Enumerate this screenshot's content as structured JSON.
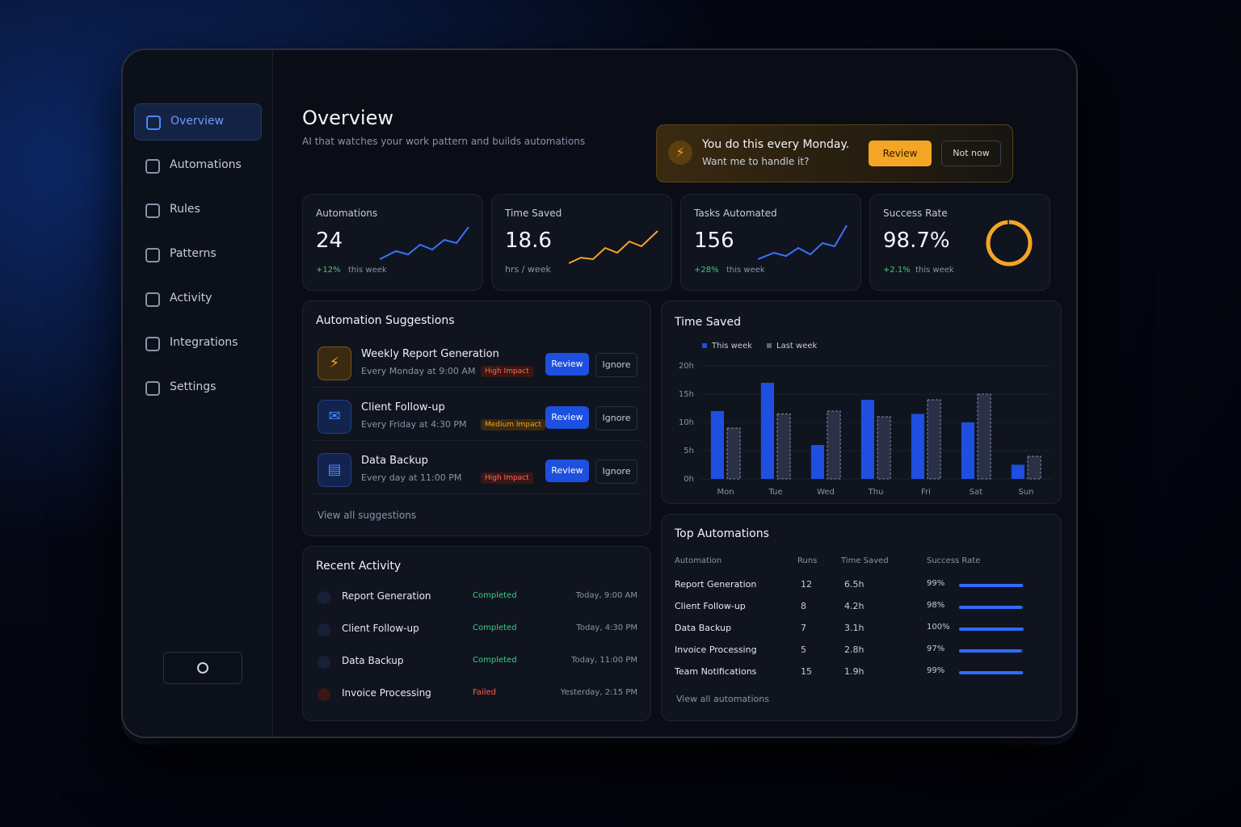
{
  "sidebar": {
    "items": [
      "Overview",
      "Automations",
      "Rules",
      "Patterns",
      "Activity",
      "Integrations",
      "Settings"
    ]
  },
  "header": {
    "title": "Overview",
    "subtitle": "AI that watches your work pattern and builds automations"
  },
  "banner": {
    "line1": "You do this every Monday.",
    "line2": "Want me to handle it?",
    "primary": "Review",
    "secondary": "Not now"
  },
  "stats": [
    {
      "label": "Automations",
      "value": 24,
      "change": "+12%",
      "note": "this week"
    },
    {
      "label": "Time Saved",
      "value": 18.6,
      "unit": "hrs / week"
    },
    {
      "label": "Tasks Automated",
      "value": 156,
      "change": "+28%",
      "note": "this week"
    },
    {
      "label": "Success Rate",
      "value": 98.7,
      "value_label": "98.7%",
      "change": "+2.1%",
      "note": "this week"
    }
  ],
  "suggestions": {
    "title": "Automation Suggestions",
    "review": "Review",
    "ignore": "Ignore",
    "items": [
      {
        "name": "Weekly Report Generation",
        "schedule": "Every Monday at 9:00 AM",
        "impact": "High Impact"
      },
      {
        "name": "Client Follow-up",
        "schedule": "Every Friday at 4:30 PM",
        "impact": "Medium Impact"
      },
      {
        "name": "Data Backup",
        "schedule": "Every day at 11:00 PM",
        "impact": "High Impact"
      }
    ],
    "link": "View all suggestions"
  },
  "activity": {
    "title": "Recent Activity",
    "items": [
      {
        "name": "Report Generation",
        "status": "Completed",
        "time": "Today, 9:00 AM"
      },
      {
        "name": "Client Follow-up",
        "status": "Completed",
        "time": "Today, 4:30 PM"
      },
      {
        "name": "Data Backup",
        "status": "Completed",
        "time": "Today, 11:00 PM"
      },
      {
        "name": "Invoice Processing",
        "status": "Failed",
        "time": "Yesterday, 2:15 PM"
      }
    ]
  },
  "time_chart": {
    "type": "bar",
    "title": "Time Saved",
    "categories": [
      "Mon",
      "Tue",
      "Wed",
      "Thu",
      "Fri",
      "Sat",
      "Sun"
    ],
    "series": [
      {
        "name": "This week",
        "color": "#1f4fe0",
        "values": [
          12,
          17,
          6,
          14,
          11.5,
          10,
          2.5
        ]
      },
      {
        "name": "Last week",
        "color": "#2a3146",
        "values": [
          9,
          11.5,
          12,
          11,
          14,
          15,
          4
        ]
      }
    ],
    "ylim": [
      0,
      20
    ],
    "yticks": [
      {
        "value": 0,
        "label": "0h"
      },
      {
        "value": 5,
        "label": "5h"
      },
      {
        "value": 10,
        "label": "10h"
      },
      {
        "value": 15,
        "label": "15h"
      },
      {
        "value": 20,
        "label": "20h"
      }
    ]
  },
  "top": {
    "title": "Top Automations",
    "columns": [
      "Automation",
      "Runs",
      "Time Saved",
      "Success Rate"
    ],
    "rows": [
      {
        "name": "Report Generation",
        "runs": 12,
        "time_saved": "6.5h",
        "success": 99,
        "success_label": "99%"
      },
      {
        "name": "Client Follow-up",
        "runs": 8,
        "time_saved": "4.2h",
        "success": 98,
        "success_label": "98%"
      },
      {
        "name": "Data Backup",
        "runs": 7,
        "time_saved": "3.1h",
        "success": 100,
        "success_label": "100%"
      },
      {
        "name": "Invoice Processing",
        "runs": 5,
        "time_saved": "2.8h",
        "success": 97,
        "success_label": "97%"
      },
      {
        "name": "Team Notifications",
        "runs": 15,
        "time_saved": "1.9h",
        "success": 99,
        "success_label": "99%"
      }
    ],
    "link": "View all automations"
  }
}
